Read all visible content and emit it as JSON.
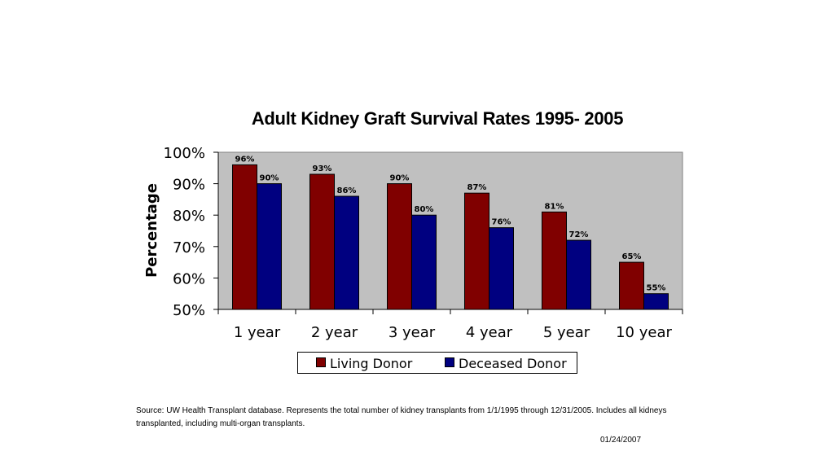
{
  "chart_data": {
    "type": "bar",
    "title": "Adult Kidney Graft Survival Rates 1995- 2005",
    "ylabel": "Percentage",
    "xlabel": "",
    "categories": [
      "1 year",
      "2 year",
      "3 year",
      "4 year",
      "5 year",
      "10 year"
    ],
    "ylim": [
      50,
      100
    ],
    "yticks": [
      "50%",
      "60%",
      "70%",
      "80%",
      "90%",
      "100%"
    ],
    "ytick_values": [
      50,
      60,
      70,
      80,
      90,
      100
    ],
    "series": [
      {
        "name": "Living Donor",
        "color": "#800000",
        "values": [
          96,
          93,
          90,
          87,
          81,
          65
        ],
        "labels": [
          "96%",
          "93%",
          "90%",
          "87%",
          "81%",
          "65%"
        ]
      },
      {
        "name": "Deceased Donor",
        "color": "#000080",
        "values": [
          90,
          86,
          80,
          76,
          72,
          55
        ],
        "labels": [
          "90%",
          "86%",
          "80%",
          "76%",
          "72%",
          "55%"
        ]
      }
    ],
    "plot_background": "#c0c0c0",
    "legend_position": "bottom"
  },
  "footer": {
    "source": "Source:  UW Health Transplant database.  Represents the total number of kidney transplants from 1/1/1995 through 12/31/2005. Includes all kidneys transplanted, including multi-organ transplants.",
    "date": "01/24/2007"
  }
}
